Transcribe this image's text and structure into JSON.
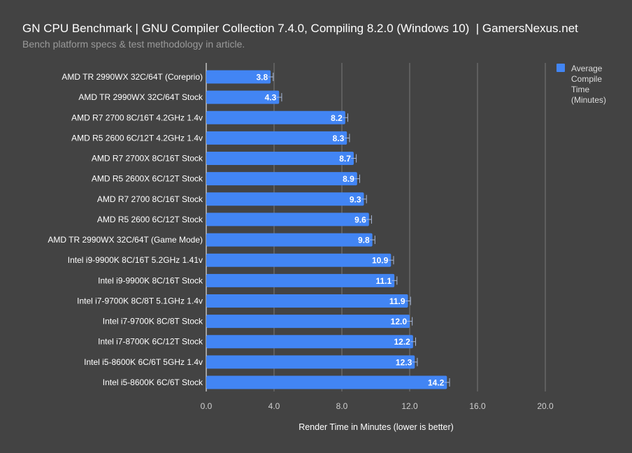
{
  "chart_data": {
    "type": "bar",
    "orientation": "horizontal",
    "title": "GN CPU Benchmark | GNU Compiler Collection 7.4.0, Compiling 8.2.0 (Windows 10)  | GamersNexus.net",
    "subtitle": "Bench platform specs & test methodology in article.",
    "xlabel": "Render Time in Minutes (lower is better)",
    "ylabel": "",
    "xlim": [
      0,
      20
    ],
    "xticks": [
      "0.0",
      "4.0",
      "8.0",
      "12.0",
      "16.0",
      "20.0"
    ],
    "grid": true,
    "legend_position": "top-right",
    "error_bars": true,
    "bar_color": "#4285f4",
    "background": "#434343",
    "categories": [
      "AMD TR 2990WX 32C/64T (Coreprio)",
      "AMD TR 2990WX 32C/64T Stock",
      "AMD R7 2700 8C/16T 4.2GHz 1.4v",
      "AMD R5 2600 6C/12T 4.2GHz 1.4v",
      "AMD R7 2700X 8C/16T Stock",
      "AMD R5 2600X 6C/12T Stock",
      "AMD R7 2700 8C/16T Stock",
      "AMD R5 2600 6C/12T Stock",
      "AMD TR 2990WX 32C/64T (Game Mode)",
      "Intel i9-9900K 8C/16T 5.2GHz 1.41v",
      "Intel i9-9900K 8C/16T Stock",
      "Intel i7-9700K 8C/8T 5.1GHz 1.4v",
      "Intel i7-9700K 8C/8T Stock",
      "Intel i7-8700K 6C/12T Stock",
      "Intel i5-8600K 6C/6T 5GHz 1.4v",
      "Intel i5-8600K 6C/6T Stock"
    ],
    "series": [
      {
        "name": "Average Compile Time (Minutes)",
        "values": [
          3.8,
          4.3,
          8.2,
          8.3,
          8.7,
          8.9,
          9.3,
          9.6,
          9.8,
          10.9,
          11.1,
          11.9,
          12.0,
          12.2,
          12.3,
          14.2
        ],
        "labels": [
          "3.8",
          "4.3",
          "8.2",
          "8.3",
          "8.7",
          "8.9",
          "9.3",
          "9.6",
          "9.8",
          "10.9",
          "11.1",
          "11.9",
          "12.0",
          "12.2",
          "12.3",
          "14.2"
        ]
      }
    ],
    "legend": {
      "lines": [
        "Average",
        "Compile",
        "Time",
        "(Minutes)"
      ]
    }
  }
}
